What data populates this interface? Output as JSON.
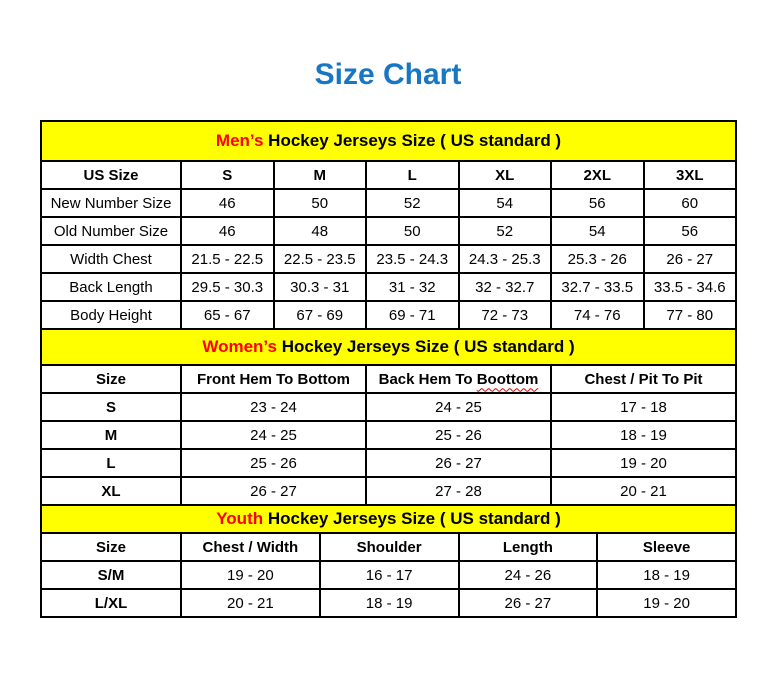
{
  "title": "Size Chart",
  "colors": {
    "title_blue": "#1777C4",
    "band_yellow": "#FFFF00",
    "accent_red": "#FF0000",
    "border_black": "#000000"
  },
  "sections": {
    "mens": {
      "band_highlight": "Men’s",
      "band_rest": " Hockey Jerseys Size ( US standard )",
      "columns": [
        "US Size",
        "S",
        "M",
        "L",
        "XL",
        "2XL",
        "3XL"
      ],
      "rows": [
        [
          "New Number Size",
          "46",
          "50",
          "52",
          "54",
          "56",
          "60"
        ],
        [
          "Old Number Size",
          "46",
          "48",
          "50",
          "52",
          "54",
          "56"
        ],
        [
          "Width Chest",
          "21.5 - 22.5",
          "22.5 - 23.5",
          "23.5 - 24.3",
          "24.3 - 25.3",
          "25.3 - 26",
          "26 - 27"
        ],
        [
          "Back Length",
          "29.5 - 30.3",
          "30.3 - 31",
          "31 - 32",
          "32 - 32.7",
          "32.7 - 33.5",
          "33.5 - 34.6"
        ],
        [
          "Body Height",
          "65 - 67",
          "67 - 69",
          "69 - 71",
          "72 - 73",
          "74 - 76",
          "77 - 80"
        ]
      ]
    },
    "womens": {
      "band_highlight": "Women’s",
      "band_rest": " Hockey Jerseys Size ( US standard )",
      "columns": [
        "Size",
        "Front Hem To Bottom",
        "Back Hem To Boottom",
        "Chest / Pit To Pit"
      ],
      "wavy": {
        "prefix": "Back Hem To ",
        "word": "Boottom"
      },
      "rows": [
        [
          "S",
          "23 - 24",
          "24 - 25",
          "17 - 18"
        ],
        [
          "M",
          "24 - 25",
          "25 - 26",
          "18 - 19"
        ],
        [
          "L",
          "25 - 26",
          "26 - 27",
          "19 - 20"
        ],
        [
          "XL",
          "26 - 27",
          "27 - 28",
          "20 - 21"
        ]
      ]
    },
    "youth": {
      "band_highlight": "Youth",
      "band_rest": " Hockey Jerseys Size ( US standard )",
      "columns": [
        "Size",
        "Chest / Width",
        "Shoulder",
        "Length",
        "Sleeve"
      ],
      "rows": [
        [
          "S/M",
          "19 - 20",
          "16 - 17",
          "24 - 26",
          "18 - 19"
        ],
        [
          "L/XL",
          "20 - 21",
          "18 - 19",
          "26 - 27",
          "19 - 20"
        ]
      ]
    }
  }
}
